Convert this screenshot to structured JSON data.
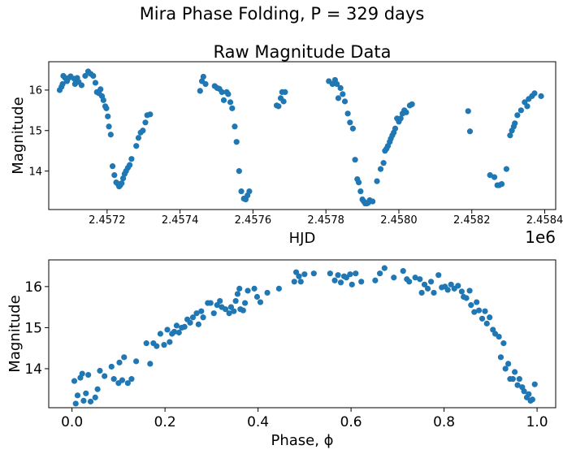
{
  "figure": {
    "suptitle": "Mira Phase Folding, P = 329 days"
  },
  "colors": {
    "marker": "#1f77b4"
  },
  "chart_data": [
    {
      "type": "scatter",
      "title": "Raw Magnitude Data",
      "xlabel": "HJD",
      "ylabel": "Magnitude",
      "x_offset_label": "1e6",
      "x_ticks": [
        "2.4572",
        "2.4574",
        "2.4576",
        "2.4578",
        "2.4580",
        "2.4582",
        "2.4584"
      ],
      "y_ticks": [
        "14",
        "15",
        "16"
      ],
      "xlim": [
        2457040,
        2458430
      ],
      "ylim": [
        13.05,
        16.7
      ],
      "grid": false,
      "points": [
        [
          2457070,
          16.0
        ],
        [
          2457075,
          16.08
        ],
        [
          2457078,
          16.15
        ],
        [
          2457080,
          16.35
        ],
        [
          2457085,
          16.3
        ],
        [
          2457090,
          16.22
        ],
        [
          2457095,
          16.3
        ],
        [
          2457100,
          16.34
        ],
        [
          2457110,
          16.28
        ],
        [
          2457112,
          16.15
        ],
        [
          2457115,
          16.22
        ],
        [
          2457118,
          16.3
        ],
        [
          2457122,
          16.2
        ],
        [
          2457130,
          16.12
        ],
        [
          2457140,
          16.35
        ],
        [
          2457148,
          16.46
        ],
        [
          2457155,
          16.4
        ],
        [
          2457162,
          16.35
        ],
        [
          2457168,
          16.18
        ],
        [
          2457172,
          15.95
        ],
        [
          2457178,
          15.92
        ],
        [
          2457182,
          16.02
        ],
        [
          2457186,
          15.85
        ],
        [
          2457190,
          15.75
        ],
        [
          2457195,
          15.6
        ],
        [
          2457198,
          15.55
        ],
        [
          2457202,
          15.35
        ],
        [
          2457205,
          15.1
        ],
        [
          2457210,
          14.9
        ],
        [
          2457215,
          14.12
        ],
        [
          2457220,
          13.9
        ],
        [
          2457225,
          13.72
        ],
        [
          2457230,
          13.68
        ],
        [
          2457233,
          13.62
        ],
        [
          2457236,
          13.65
        ],
        [
          2457240,
          13.7
        ],
        [
          2457244,
          13.82
        ],
        [
          2457248,
          13.93
        ],
        [
          2457252,
          14.0
        ],
        [
          2457257,
          14.08
        ],
        [
          2457262,
          14.15
        ],
        [
          2457267,
          14.3
        ],
        [
          2457280,
          14.62
        ],
        [
          2457286,
          14.82
        ],
        [
          2457292,
          14.95
        ],
        [
          2457298,
          15.0
        ],
        [
          2457305,
          15.2
        ],
        [
          2457310,
          15.38
        ],
        [
          2457318,
          15.4
        ],
        [
          2457455,
          15.98
        ],
        [
          2457460,
          16.22
        ],
        [
          2457464,
          16.33
        ],
        [
          2457470,
          16.15
        ],
        [
          2457495,
          16.1
        ],
        [
          2457502,
          16.05
        ],
        [
          2457508,
          16.03
        ],
        [
          2457515,
          15.95
        ],
        [
          2457520,
          15.75
        ],
        [
          2457528,
          15.95
        ],
        [
          2457532,
          15.9
        ],
        [
          2457538,
          15.7
        ],
        [
          2457543,
          15.55
        ],
        [
          2457550,
          15.1
        ],
        [
          2457555,
          14.72
        ],
        [
          2457562,
          14.0
        ],
        [
          2457568,
          13.5
        ],
        [
          2457575,
          13.32
        ],
        [
          2457580,
          13.3
        ],
        [
          2457585,
          13.4
        ],
        [
          2457590,
          13.5
        ],
        [
          2457665,
          15.62
        ],
        [
          2457670,
          15.6
        ],
        [
          2457676,
          15.8
        ],
        [
          2457680,
          15.95
        ],
        [
          2457684,
          15.72
        ],
        [
          2457688,
          15.95
        ],
        [
          2457808,
          16.22
        ],
        [
          2457818,
          16.15
        ],
        [
          2457825,
          16.25
        ],
        [
          2457830,
          16.15
        ],
        [
          2457834,
          15.8
        ],
        [
          2457840,
          16.05
        ],
        [
          2457846,
          15.9
        ],
        [
          2457852,
          15.72
        ],
        [
          2457860,
          15.42
        ],
        [
          2457866,
          15.2
        ],
        [
          2457874,
          15.05
        ],
        [
          2457880,
          14.28
        ],
        [
          2457886,
          13.8
        ],
        [
          2457890,
          13.72
        ],
        [
          2457895,
          13.5
        ],
        [
          2457900,
          13.3
        ],
        [
          2457904,
          13.25
        ],
        [
          2457908,
          13.2
        ],
        [
          2457912,
          13.2
        ],
        [
          2457916,
          13.22
        ],
        [
          2457920,
          13.28
        ],
        [
          2457928,
          13.25
        ],
        [
          2457940,
          13.75
        ],
        [
          2457950,
          14.05
        ],
        [
          2457958,
          14.2
        ],
        [
          2457962,
          14.5
        ],
        [
          2457966,
          14.55
        ],
        [
          2457970,
          14.62
        ],
        [
          2457975,
          14.72
        ],
        [
          2457978,
          14.8
        ],
        [
          2457982,
          14.88
        ],
        [
          2457986,
          14.95
        ],
        [
          2457990,
          15.05
        ],
        [
          2457995,
          15.3
        ],
        [
          2458000,
          15.22
        ],
        [
          2458005,
          15.3
        ],
        [
          2458010,
          15.42
        ],
        [
          2458015,
          15.5
        ],
        [
          2458020,
          15.45
        ],
        [
          2458030,
          15.62
        ],
        [
          2458036,
          15.65
        ],
        [
          2458190,
          15.48
        ],
        [
          2458195,
          14.98
        ],
        [
          2458250,
          13.9
        ],
        [
          2458262,
          13.85
        ],
        [
          2458270,
          13.65
        ],
        [
          2458275,
          13.65
        ],
        [
          2458282,
          13.68
        ],
        [
          2458295,
          14.05
        ],
        [
          2458305,
          14.88
        ],
        [
          2458310,
          15.0
        ],
        [
          2458315,
          15.1
        ],
        [
          2458318,
          15.18
        ],
        [
          2458325,
          15.38
        ],
        [
          2458335,
          15.5
        ],
        [
          2458345,
          15.7
        ],
        [
          2458352,
          15.6
        ],
        [
          2458356,
          15.78
        ],
        [
          2458365,
          15.85
        ],
        [
          2458372,
          15.92
        ],
        [
          2458390,
          15.85
        ]
      ]
    },
    {
      "type": "scatter",
      "title": "",
      "xlabel": "Phase, ϕ",
      "ylabel": "Magnitude",
      "x_ticks": [
        "0.0",
        "0.2",
        "0.4",
        "0.6",
        "0.8",
        "1.0"
      ],
      "y_ticks": [
        "14",
        "15",
        "16"
      ],
      "xlim": [
        -0.05,
        1.04
      ],
      "ylim": [
        13.05,
        16.65
      ],
      "grid": false,
      "points": [
        [
          0.005,
          13.7
        ],
        [
          0.008,
          13.15
        ],
        [
          0.012,
          13.35
        ],
        [
          0.018,
          13.78
        ],
        [
          0.022,
          13.88
        ],
        [
          0.025,
          13.22
        ],
        [
          0.03,
          13.4
        ],
        [
          0.035,
          13.85
        ],
        [
          0.04,
          13.2
        ],
        [
          0.05,
          13.3
        ],
        [
          0.055,
          13.5
        ],
        [
          0.06,
          13.95
        ],
        [
          0.07,
          13.82
        ],
        [
          0.085,
          14.05
        ],
        [
          0.09,
          13.75
        ],
        [
          0.1,
          13.65
        ],
        [
          0.102,
          14.15
        ],
        [
          0.108,
          13.72
        ],
        [
          0.112,
          14.28
        ],
        [
          0.12,
          13.65
        ],
        [
          0.128,
          13.75
        ],
        [
          0.138,
          14.18
        ],
        [
          0.16,
          14.62
        ],
        [
          0.168,
          14.12
        ],
        [
          0.175,
          14.62
        ],
        [
          0.182,
          14.55
        ],
        [
          0.19,
          14.85
        ],
        [
          0.198,
          14.58
        ],
        [
          0.205,
          14.95
        ],
        [
          0.21,
          14.65
        ],
        [
          0.215,
          14.85
        ],
        [
          0.22,
          14.9
        ],
        [
          0.225,
          15.05
        ],
        [
          0.23,
          14.88
        ],
        [
          0.236,
          15.0
        ],
        [
          0.242,
          15.02
        ],
        [
          0.248,
          15.2
        ],
        [
          0.254,
          15.12
        ],
        [
          0.26,
          15.25
        ],
        [
          0.268,
          15.35
        ],
        [
          0.272,
          15.08
        ],
        [
          0.278,
          15.4
        ],
        [
          0.282,
          15.25
        ],
        [
          0.292,
          15.6
        ],
        [
          0.298,
          15.6
        ],
        [
          0.305,
          15.35
        ],
        [
          0.312,
          15.55
        ],
        [
          0.318,
          15.65
        ],
        [
          0.322,
          15.5
        ],
        [
          0.33,
          15.45
        ],
        [
          0.338,
          15.35
        ],
        [
          0.342,
          15.5
        ],
        [
          0.348,
          15.4
        ],
        [
          0.352,
          15.65
        ],
        [
          0.356,
          15.82
        ],
        [
          0.36,
          15.95
        ],
        [
          0.362,
          15.45
        ],
        [
          0.368,
          15.42
        ],
        [
          0.372,
          15.6
        ],
        [
          0.378,
          15.9
        ],
        [
          0.392,
          15.95
        ],
        [
          0.398,
          15.75
        ],
        [
          0.405,
          15.62
        ],
        [
          0.42,
          15.85
        ],
        [
          0.445,
          15.95
        ],
        [
          0.478,
          16.12
        ],
        [
          0.482,
          16.35
        ],
        [
          0.488,
          16.25
        ],
        [
          0.492,
          16.12
        ],
        [
          0.5,
          16.3
        ],
        [
          0.52,
          16.32
        ],
        [
          0.555,
          16.32
        ],
        [
          0.565,
          16.15
        ],
        [
          0.572,
          16.28
        ],
        [
          0.578,
          16.1
        ],
        [
          0.585,
          16.25
        ],
        [
          0.59,
          16.22
        ],
        [
          0.598,
          16.3
        ],
        [
          0.602,
          16.05
        ],
        [
          0.61,
          16.32
        ],
        [
          0.622,
          16.12
        ],
        [
          0.652,
          16.15
        ],
        [
          0.662,
          16.32
        ],
        [
          0.672,
          16.45
        ],
        [
          0.692,
          16.22
        ],
        [
          0.712,
          16.38
        ],
        [
          0.72,
          16.18
        ],
        [
          0.725,
          16.12
        ],
        [
          0.738,
          16.22
        ],
        [
          0.748,
          16.18
        ],
        [
          0.752,
          15.85
        ],
        [
          0.758,
          16.05
        ],
        [
          0.765,
          15.95
        ],
        [
          0.772,
          16.12
        ],
        [
          0.778,
          15.85
        ],
        [
          0.788,
          16.28
        ],
        [
          0.795,
          15.98
        ],
        [
          0.802,
          16.0
        ],
        [
          0.808,
          15.92
        ],
        [
          0.815,
          16.05
        ],
        [
          0.822,
          15.95
        ],
        [
          0.83,
          16.02
        ],
        [
          0.838,
          15.88
        ],
        [
          0.842,
          15.75
        ],
        [
          0.848,
          15.72
        ],
        [
          0.855,
          15.9
        ],
        [
          0.858,
          15.55
        ],
        [
          0.865,
          15.38
        ],
        [
          0.87,
          15.62
        ],
        [
          0.875,
          15.42
        ],
        [
          0.882,
          15.22
        ],
        [
          0.888,
          15.4
        ],
        [
          0.892,
          15.1
        ],
        [
          0.898,
          15.25
        ],
        [
          0.905,
          14.95
        ],
        [
          0.91,
          14.85
        ],
        [
          0.918,
          14.78
        ],
        [
          0.922,
          14.28
        ],
        [
          0.928,
          14.62
        ],
        [
          0.932,
          14.0
        ],
        [
          0.938,
          14.12
        ],
        [
          0.942,
          13.75
        ],
        [
          0.948,
          13.75
        ],
        [
          0.952,
          13.92
        ],
        [
          0.958,
          13.6
        ],
        [
          0.962,
          13.75
        ],
        [
          0.968,
          13.55
        ],
        [
          0.972,
          13.45
        ],
        [
          0.978,
          13.3
        ],
        [
          0.982,
          13.38
        ],
        [
          0.986,
          13.22
        ],
        [
          0.99,
          13.25
        ],
        [
          0.995,
          13.62
        ]
      ]
    }
  ]
}
